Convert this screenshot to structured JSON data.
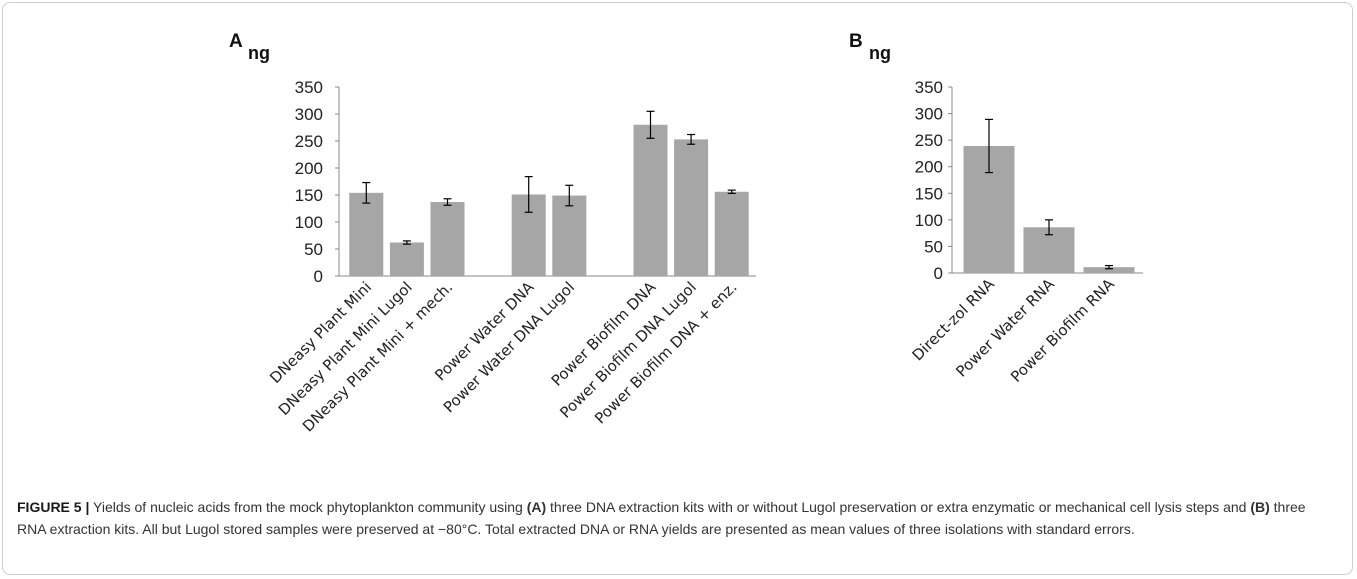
{
  "chart_data": [
    {
      "type": "bar",
      "panel_label": "A",
      "ylabel": "ng",
      "ylim": [
        0,
        350
      ],
      "yticks": [
        "0",
        "50",
        "100",
        "150",
        "200",
        "250",
        "300",
        "350"
      ],
      "categories": [
        "DNeasy Plant Mini",
        "DNeasy Plant Mini Lugol",
        "DNeasy Plant Mini + mech.",
        "",
        "Power Water DNA",
        "Power Water DNA Lugol",
        "",
        "Power Biofilm DNA",
        "Power Biofilm DNA Lugol",
        "Power Biofilm DNA + enz."
      ],
      "values": [
        154,
        62,
        137,
        null,
        151,
        149,
        null,
        280,
        253,
        156
      ],
      "errors": [
        19,
        3,
        6,
        null,
        33,
        19,
        null,
        25,
        9,
        3
      ],
      "bar_color": "#a6a6a6",
      "grid": false
    },
    {
      "type": "bar",
      "panel_label": "B",
      "ylabel": "ng",
      "ylim": [
        0,
        350
      ],
      "yticks": [
        "0",
        "50",
        "100",
        "150",
        "200",
        "250",
        "300",
        "350"
      ],
      "categories": [
        "Direct-zol RNA",
        "Power Water RNA",
        "Power Biofilm RNA"
      ],
      "values": [
        239,
        86,
        11
      ],
      "errors": [
        50,
        14,
        3
      ],
      "bar_color": "#a6a6a6",
      "grid": false
    }
  ],
  "caption": {
    "label": "FIGURE 5 |",
    "seg1": " Yields of nucleic acids from the mock phytoplankton community using ",
    "a_ref": "(A)",
    "seg2": " three DNA extraction kits with or without Lugol preservation or extra enzymatic or mechanical cell lysis steps and ",
    "b_ref": "(B)",
    "seg3": " three RNA extraction kits. All but Lugol stored samples were preserved at −80°C. Total extracted DNA or RNA yields are presented as mean values of three isolations with standard errors."
  }
}
